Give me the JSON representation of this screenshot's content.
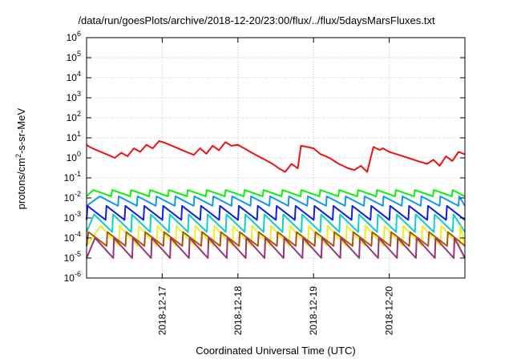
{
  "chart_data": {
    "type": "line",
    "title": "/data/run/goesPlots/archive/2018-12-20/23:00/flux/../flux/5daysMarsFluxes.txt",
    "xlabel": "Coordinated Universal Time (UTC)",
    "ylabel": {
      "pre": "protons/cm",
      "sup": "2",
      "post": "-s-sr-MeV"
    },
    "yscale": "log",
    "ylim": [
      1e-06,
      1000000.0
    ],
    "y_ticks": [
      {
        "base": "10",
        "exp": "-6",
        "value": 1e-06
      },
      {
        "base": "10",
        "exp": "-5",
        "value": 1e-05
      },
      {
        "base": "10",
        "exp": "-4",
        "value": 0.0001
      },
      {
        "base": "10",
        "exp": "-3",
        "value": 0.001
      },
      {
        "base": "10",
        "exp": "-2",
        "value": 0.01
      },
      {
        "base": "10",
        "exp": "-1",
        "value": 0.1
      },
      {
        "base": "10",
        "exp": "0",
        "value": 1.0
      },
      {
        "base": "10",
        "exp": "1",
        "value": 10.0
      },
      {
        "base": "10",
        "exp": "2",
        "value": 100.0
      },
      {
        "base": "10",
        "exp": "3",
        "value": 1000.0
      },
      {
        "base": "10",
        "exp": "4",
        "value": 10000.0
      },
      {
        "base": "10",
        "exp": "5",
        "value": 100000.0
      },
      {
        "base": "10",
        "exp": "6",
        "value": 1000000.0
      }
    ],
    "xlim": [
      "2018-12-16T00:00",
      "2018-12-21T00:00"
    ],
    "x_ticks": [
      "2018-12-17",
      "2018-12-18",
      "2018-12-19",
      "2018-12-20"
    ],
    "grid": true,
    "series": [
      {
        "color": "#ee1111",
        "x": [
          "2018-12-16T00:00",
          "2018-12-16T01:00",
          "2018-12-16T03:00",
          "2018-12-16T06:00",
          "2018-12-16T09:00",
          "2018-12-16T11:00",
          "2018-12-16T13:00",
          "2018-12-16T15:00",
          "2018-12-16T17:00",
          "2018-12-16T19:00",
          "2018-12-16T21:00",
          "2018-12-16T23:00",
          "2018-12-17T01:00",
          "2018-12-17T04:00",
          "2018-12-17T07:00",
          "2018-12-17T10:00",
          "2018-12-17T12:00",
          "2018-12-17T14:00",
          "2018-12-17T16:00",
          "2018-12-17T18:00",
          "2018-12-17T20:00",
          "2018-12-17T22:00",
          "2018-12-18T00:00",
          "2018-12-18T02:00",
          "2018-12-18T05:00",
          "2018-12-18T08:00",
          "2018-12-18T11:00",
          "2018-12-18T13:00",
          "2018-12-18T15:00",
          "2018-12-18T17:00",
          "2018-12-18T19:00",
          "2018-12-18T20:00",
          "2018-12-18T22:00",
          "2018-12-19T00:00",
          "2018-12-19T02:00",
          "2018-12-19T05:00",
          "2018-12-19T08:00",
          "2018-12-19T11:00",
          "2018-12-19T13:00",
          "2018-12-19T15:00",
          "2018-12-19T17:00",
          "2018-12-19T19:00",
          "2018-12-19T21:00",
          "2018-12-19T22:00",
          "2018-12-20T00:00",
          "2018-12-20T03:00",
          "2018-12-20T06:00",
          "2018-12-20T09:00",
          "2018-12-20T12:00",
          "2018-12-20T14:00",
          "2018-12-20T16:00",
          "2018-12-20T18:00",
          "2018-12-20T20:00",
          "2018-12-20T22:00",
          "2018-12-21T00:00"
        ],
        "y": [
          4.5,
          3.5,
          2.5,
          1.6,
          1.0,
          1.8,
          1.2,
          3.0,
          2.0,
          4.5,
          3.0,
          7.0,
          5.5,
          3.5,
          2.2,
          1.4,
          3.0,
          1.6,
          4.0,
          2.4,
          6.0,
          4.0,
          4.5,
          3.0,
          1.6,
          0.9,
          0.5,
          0.3,
          0.2,
          0.5,
          0.3,
          4.0,
          3.5,
          3.0,
          1.6,
          1.0,
          0.5,
          0.3,
          0.25,
          0.4,
          0.2,
          3.5,
          2.5,
          3.0,
          2.0,
          1.4,
          1.0,
          0.7,
          0.5,
          0.8,
          0.4,
          1.2,
          0.7,
          2.0,
          1.5
        ]
      },
      {
        "color": "#11ee11",
        "sawtooth": {
          "period_hours": 6,
          "peak": 0.025,
          "trough": 0.012
        }
      },
      {
        "color": "#1199ee",
        "sawtooth": {
          "period_hours": 6,
          "peak": 0.012,
          "trough": 0.004
        }
      },
      {
        "color": "#1122dd",
        "sawtooth": {
          "period_hours": 6,
          "peak": 0.004,
          "trough": 0.0008
        }
      },
      {
        "color": "#11cccc",
        "sawtooth": {
          "period_hours": 6,
          "peak": 0.0015,
          "trough": 0.0002
        }
      },
      {
        "color": "#eeee22",
        "sawtooth": {
          "period_hours": 6,
          "peak": 0.0004,
          "trough": 4e-05
        }
      },
      {
        "color": "#aa5511",
        "sawtooth": {
          "period_hours": 6,
          "peak": 0.0002,
          "trough": 4e-05
        }
      },
      {
        "color": "#993377",
        "sawtooth": {
          "period_hours": 6,
          "peak": 0.0001,
          "trough": 1e-05
        }
      }
    ]
  }
}
